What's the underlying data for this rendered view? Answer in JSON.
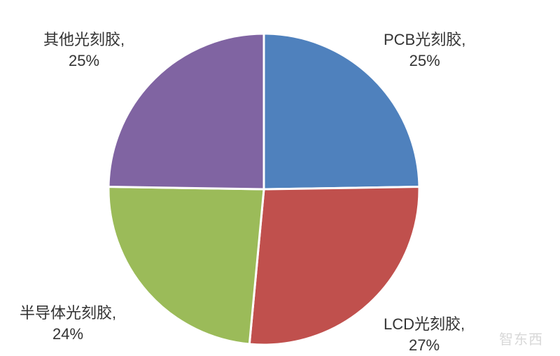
{
  "chart_data": {
    "type": "pie",
    "title": "",
    "slices": [
      {
        "name": "PCB光刻胶",
        "value": 25,
        "label_name": "PCB光刻胶,",
        "label_pct": "25%",
        "color": "#4f81bd"
      },
      {
        "name": "LCD光刻胶",
        "value": 27,
        "label_name": "LCD光刻胶,",
        "label_pct": "27%",
        "color": "#c0504d"
      },
      {
        "name": "半导体光刻胶",
        "value": 24,
        "label_name": "半导体光刻胶,",
        "label_pct": "24%",
        "color": "#9bbb59"
      },
      {
        "name": "其他光刻胶",
        "value": 25,
        "label_name": "其他光刻胶,",
        "label_pct": "25%",
        "color": "#8064a2"
      }
    ],
    "legend": "none",
    "start": "top",
    "direction": "clockwise"
  },
  "watermark": "智东西"
}
